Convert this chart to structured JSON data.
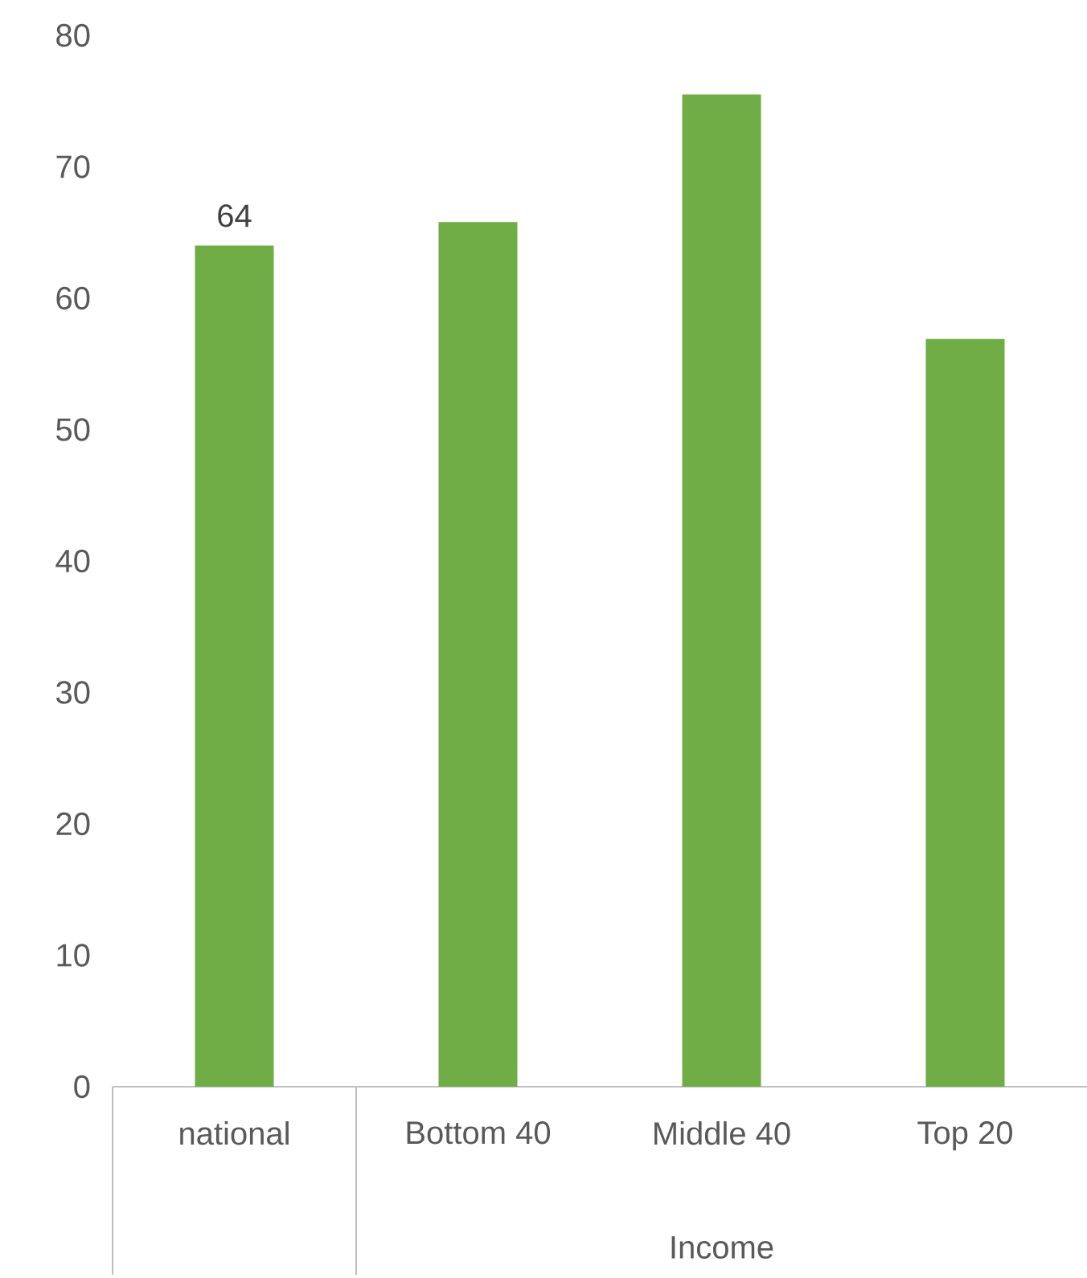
{
  "chart_data": {
    "type": "bar",
    "categories": [
      "national",
      "Bottom 40",
      "Middle 40",
      "Top 20"
    ],
    "values": [
      64,
      65.8,
      75.5,
      56.9
    ],
    "value_labels": [
      "64",
      null,
      null,
      null
    ],
    "color": "#70ad47",
    "ylim": [
      0,
      80
    ],
    "yticks": [
      0,
      10,
      20,
      30,
      40,
      50,
      60,
      70,
      80
    ],
    "annotations": [
      "Income"
    ]
  }
}
